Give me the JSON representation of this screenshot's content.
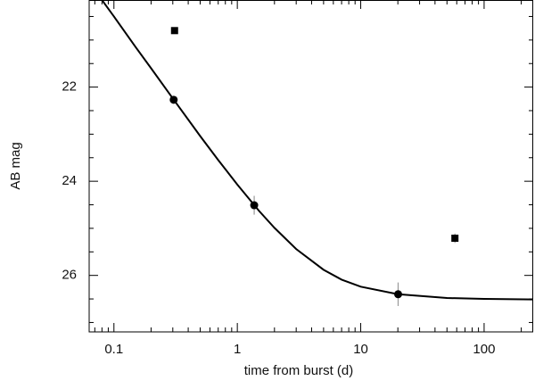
{
  "chart_data": {
    "type": "scatter",
    "x_label": "time from burst (d)",
    "y_label": "AB mag",
    "x_log": true,
    "y_inverted": true,
    "xlim": [
      0.063,
      250
    ],
    "ylim": [
      20.15,
      27.2
    ],
    "xticks": [
      0.1,
      1,
      10,
      100
    ],
    "yticks": [
      22,
      24,
      26
    ],
    "xminorticks": [
      0.07,
      0.08,
      0.09,
      0.2,
      0.3,
      0.4,
      0.5,
      0.6,
      0.7,
      0.8,
      0.9,
      2,
      3,
      4,
      5,
      6,
      7,
      8,
      9,
      20,
      30,
      40,
      50,
      60,
      70,
      80,
      90,
      200
    ],
    "yminorticks": [
      20.5,
      21,
      21.5,
      22.5,
      23,
      23.5,
      24.5,
      25,
      25.5,
      26.5,
      27
    ],
    "series": [
      {
        "marker": "circle",
        "color": "#000000",
        "error_color": "#999999",
        "x": [
          0.305,
          1.37,
          20.1
        ],
        "values": [
          22.27,
          24.51,
          26.4
        ],
        "errors": [
          0.05,
          0.2,
          0.25
        ]
      },
      {
        "marker": "square",
        "color": "#000000",
        "error_color": "#999999",
        "x": [
          0.31,
          58
        ],
        "values": [
          20.8,
          25.21
        ],
        "errors": [
          null,
          0.1
        ]
      },
      {
        "marker": "line",
        "color": "#000000",
        "x": [
          0.08,
          0.1,
          0.15,
          0.2,
          0.3,
          0.5,
          0.7,
          1,
          1.5,
          2,
          3,
          5,
          7,
          10,
          20,
          50,
          100,
          250
        ],
        "values": [
          20.15,
          20.5,
          21.15,
          21.6,
          22.24,
          23.04,
          23.55,
          24.07,
          24.63,
          24.99,
          25.44,
          25.88,
          26.09,
          26.24,
          26.4,
          26.48,
          26.5,
          26.51
        ]
      }
    ]
  }
}
